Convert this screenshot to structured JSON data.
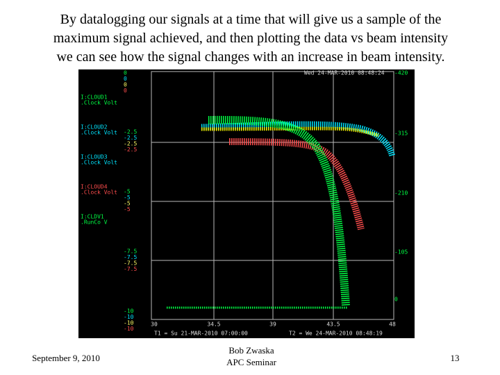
{
  "slide": {
    "title_lines": [
      "By datalogging our signals at a time that will give us a sample of the",
      "maximum signal achieved, and then plotting the data vs  beam intensity",
      "we can see how the signal changes with an increase in beam intensity."
    ],
    "footer": {
      "date": "September 9, 2010",
      "author": "Bob Zwaska",
      "event": "APC Seminar",
      "page": "13"
    }
  },
  "screenshot": {
    "timestamp": "Wed 24-MAR-2010 08:48:24",
    "channels": [
      {
        "id": "I:CLOUD1",
        "label": ".Clock  Volt"
      },
      {
        "id": "I:CLOUD2",
        "label": ".Clock  Volt"
      },
      {
        "id": "I:CLOUD3",
        "label": ".Clock  Volt"
      },
      {
        "id": "I:CLOUD4",
        "label": ".Clock  Volt"
      },
      {
        "id": "I:CLDV1",
        "label": ".RunCo  V"
      }
    ],
    "left_scale": [
      [
        "0",
        "0",
        "0",
        "0"
      ],
      [
        "-2.5",
        "-2.5",
        "-2.5",
        "-2.5"
      ],
      [
        "-5",
        "-5",
        "-5",
        "-5"
      ],
      [
        "-7.5",
        "-7.5",
        "-7.5",
        "-7.5"
      ],
      [
        "-10",
        "-10",
        "-10",
        "-10"
      ]
    ],
    "right_axis": [
      "-420",
      "-315",
      "-210",
      "-105",
      "0"
    ],
    "bottom_axis": [
      "30",
      "34.5",
      "39",
      "43.5",
      "48"
    ],
    "t1": "T1 = Su 21-MAR-2010 07:00:00",
    "t2": "T2 = We 24-MAR-2010 08:48:19"
  }
}
